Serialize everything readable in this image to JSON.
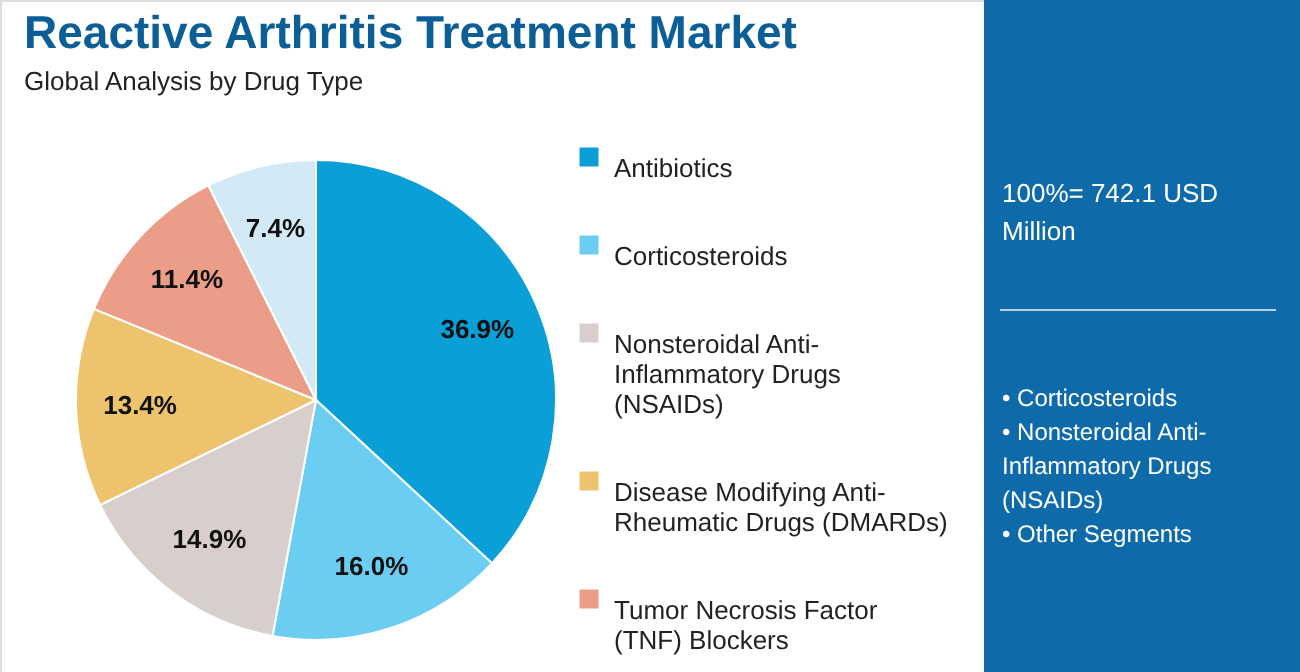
{
  "chart_data": {
    "type": "pie",
    "title": "Reactive Arthritis Treatment Market",
    "subtitle": "Global Analysis by Drug Type",
    "categories": [
      "Antibiotics",
      "Corticosteroids",
      "Nonsteroidal Anti-Inflammatory Drugs (NSAIDs)",
      "Disease Modifying Anti-Rheumatic Drugs (DMARDs)",
      "Tumor Necrosis Factor (TNF) Blockers",
      null
    ],
    "values": [
      36.9,
      16.0,
      14.9,
      13.4,
      11.4,
      7.4
    ],
    "colors": [
      "#0b9fd8",
      "#6ccdf2",
      "#d8cfcc",
      "#eec36d",
      "#eb9d88",
      "#d3e9f5"
    ],
    "value_labels": [
      "36.9%",
      "16.0%",
      "14.9%",
      "13.4%",
      "11.4%",
      "7.4%"
    ],
    "legend": "right",
    "annotations": [
      "100%= 742.1 USD Million",
      "• Corticosteroids",
      "• Nonsteroidal Anti-Inflammatory Drugs (NSAIDs)",
      "• Other Segments"
    ]
  }
}
